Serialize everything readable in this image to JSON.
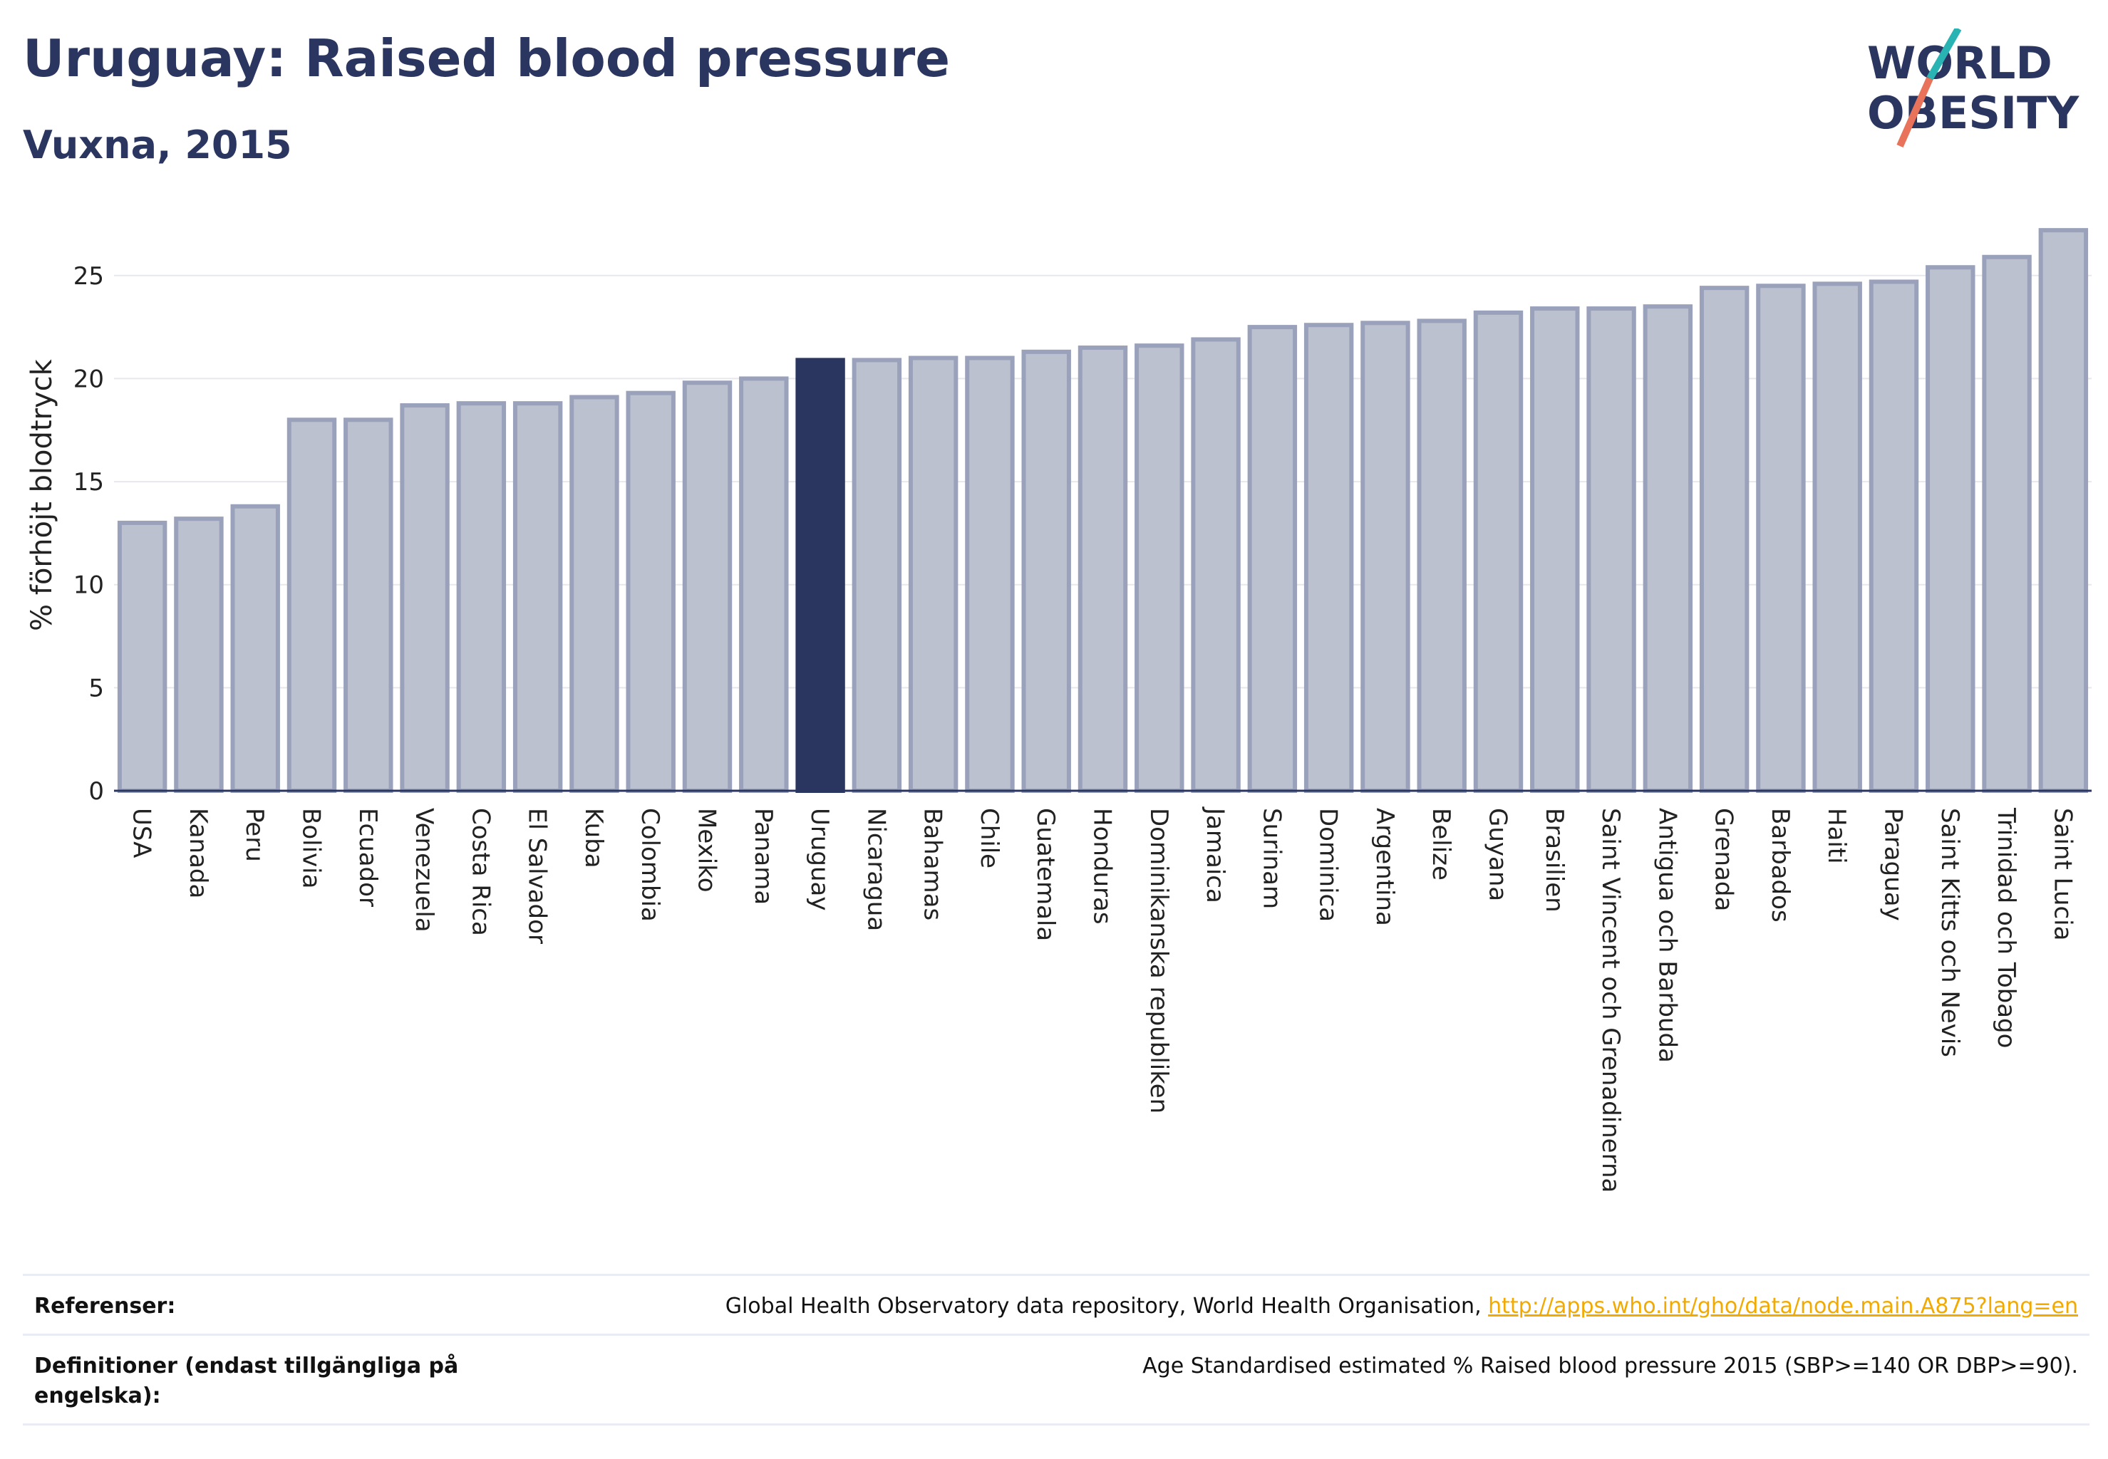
{
  "header": {
    "title": "Uruguay: Raised blood pressure",
    "subtitle": "Vuxna, 2015"
  },
  "logo": {
    "line1": "WORLD",
    "line2": "OBESITY"
  },
  "colors": {
    "bar_fill": "#bcc1d0",
    "bar_stroke": "#9aa1bb",
    "highlight": "#2b3660",
    "grid": "#e6e8ee",
    "title": "#2b3660",
    "link": "#f2a900",
    "logo_teal": "#2ab3b3",
    "logo_coral": "#e8735a"
  },
  "chart_data": {
    "type": "bar",
    "ylabel": "% förhöjt blodtryck",
    "ylim": [
      0,
      28
    ],
    "yticks": [
      0,
      5,
      10,
      15,
      20,
      25
    ],
    "highlight": "Uruguay",
    "grid": true,
    "categories": [
      "USA",
      "Kanada",
      "Peru",
      "Bolivia",
      "Ecuador",
      "Venezuela",
      "Costa Rica",
      "El Salvador",
      "Kuba",
      "Colombia",
      "Mexiko",
      "Panama",
      "Uruguay",
      "Nicaragua",
      "Bahamas",
      "Chile",
      "Guatemala",
      "Honduras",
      "Dominikanska republiken",
      "Jamaica",
      "Surinam",
      "Dominica",
      "Argentina",
      "Belize",
      "Guyana",
      "Brasilien",
      "Saint Vincent och Grenadinerna",
      "Antigua och Barbuda",
      "Grenada",
      "Barbados",
      "Haiti",
      "Paraguay",
      "Saint Kitts och Nevis",
      "Trinidad och Tobago",
      "Saint Lucia"
    ],
    "values": [
      13.0,
      13.2,
      13.8,
      18.0,
      18.0,
      18.7,
      18.8,
      18.8,
      19.1,
      19.3,
      19.8,
      20.0,
      20.9,
      20.9,
      21.0,
      21.0,
      21.3,
      21.5,
      21.6,
      21.9,
      22.5,
      22.6,
      22.7,
      22.8,
      23.2,
      23.4,
      23.4,
      23.5,
      24.4,
      24.5,
      24.6,
      24.7,
      25.4,
      25.9,
      27.2
    ]
  },
  "footer": {
    "references_label": "Referenser:",
    "references_text": "Global Health Observatory data repository, World Health Organisation, ",
    "references_link": "http://apps.who.int/gho/data/node.main.A875?lang=en",
    "definitions_label": "Definitioner (endast tillgängliga på engelska):",
    "definitions_text": "Age Standardised estimated % Raised blood pressure 2015 (SBP>=140 OR DBP>=90)."
  }
}
